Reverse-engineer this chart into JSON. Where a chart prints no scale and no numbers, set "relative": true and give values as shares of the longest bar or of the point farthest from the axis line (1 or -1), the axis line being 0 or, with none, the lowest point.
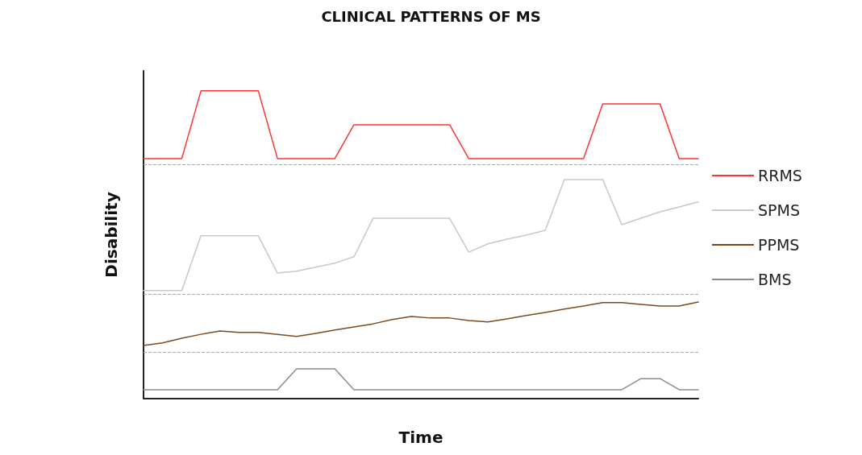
{
  "chart_data": {
    "type": "line",
    "title": "CLINICAL PATTERNS OF MS",
    "xlabel": "Time",
    "ylabel": "Disability",
    "relative": true,
    "legend": "right",
    "grid": false,
    "marker": "none",
    "line_style": "solid",
    "categories": [
      null,
      null,
      null,
      null,
      null,
      null,
      null,
      null,
      null,
      null,
      null,
      null,
      null,
      null,
      null,
      null,
      null,
      null,
      null,
      null,
      null,
      null,
      null,
      null,
      null,
      null,
      null,
      null,
      null,
      null
    ],
    "series": [
      {
        "name": "RRMS",
        "color": "#ff3333",
        "values": [
          0.78,
          0.78,
          0.78,
          1,
          1,
          1,
          1,
          0.78,
          0.78,
          0.78,
          0.78,
          0.89,
          0.89,
          0.89,
          0.89,
          0.89,
          0.89,
          0.78,
          0.78,
          0.78,
          0.78,
          0.78,
          0.78,
          0.78,
          0.958,
          0.958,
          0.958,
          0.958,
          0.78,
          0.78
        ]
      },
      {
        "name": "SPMS",
        "color": "#c8c8c8",
        "values": [
          0.351,
          0.351,
          0.351,
          0.529,
          0.529,
          0.529,
          0.529,
          0.408,
          0.414,
          0.427,
          0.44,
          0.461,
          0.586,
          0.586,
          0.586,
          0.586,
          0.586,
          0.476,
          0.503,
          0.518,
          0.531,
          0.547,
          0.712,
          0.712,
          0.712,
          0.565,
          0.586,
          0.607,
          0.623,
          0.639
        ]
      },
      {
        "name": "PPMS",
        "color": "#7a4a1e",
        "values": [
          0.173,
          0.181,
          0.196,
          0.209,
          0.22,
          0.215,
          0.215,
          0.209,
          0.202,
          0.212,
          0.223,
          0.233,
          0.243,
          0.257,
          0.267,
          0.262,
          0.262,
          0.254,
          0.249,
          0.259,
          0.27,
          0.28,
          0.291,
          0.301,
          0.312,
          0.312,
          0.306,
          0.301,
          0.301,
          0.314
        ]
      },
      {
        "name": "BMS",
        "color": "#8c8c8c",
        "values": [
          0.029,
          0.029,
          0.029,
          0.029,
          0.029,
          0.029,
          0.029,
          0.029,
          0.097,
          0.097,
          0.097,
          0.029,
          0.029,
          0.029,
          0.029,
          0.029,
          0.029,
          0.029,
          0.029,
          0.029,
          0.029,
          0.029,
          0.029,
          0.029,
          0.029,
          0.029,
          0.065,
          0.065,
          0.029,
          0.029
        ]
      }
    ],
    "ref_lines": [
      {
        "axis": "y",
        "value": 0.764,
        "color": "#aaaaaa",
        "line_style": "dashed"
      },
      {
        "axis": "y",
        "value": 0.34,
        "color": "#aaaaaa",
        "line_style": "dashed"
      },
      {
        "axis": "y",
        "value": 0.154,
        "color": "#aaaaaa",
        "line_style": "dashed"
      }
    ]
  }
}
